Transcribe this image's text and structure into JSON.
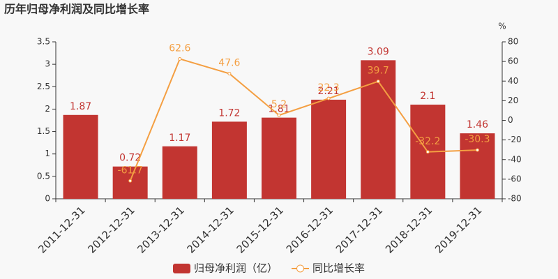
{
  "chart_data": {
    "type": "bar",
    "title": "历年归母净利润及同比增长率",
    "categories": [
      "2011-12-31",
      "2012-12-31",
      "2013-12-31",
      "2014-12-31",
      "2015-12-31",
      "2016-12-31",
      "2017-12-31",
      "2018-12-31",
      "2019-12-31"
    ],
    "series": [
      {
        "name": "归母净利润（亿）",
        "type": "bar",
        "color": "#c23531",
        "values": [
          1.87,
          0.72,
          1.17,
          1.72,
          1.81,
          2.21,
          3.09,
          2.1,
          1.46
        ]
      },
      {
        "name": "同比增长率",
        "type": "line",
        "axis": "y2",
        "color": "#f49f42",
        "values": [
          null,
          -61.7,
          62.6,
          47.6,
          5.2,
          22.3,
          39.7,
          -32.2,
          -30.3
        ]
      }
    ],
    "ylim": [
      0,
      3.5
    ],
    "yticks": [
      0,
      0.5,
      1,
      1.5,
      2,
      2.5,
      3,
      3.5
    ],
    "y2lim": [
      -80,
      80
    ],
    "y2ticks": [
      -80,
      -60,
      -40,
      -20,
      0,
      20,
      40,
      60,
      80
    ],
    "y2label": "%",
    "legend": "bottom"
  }
}
